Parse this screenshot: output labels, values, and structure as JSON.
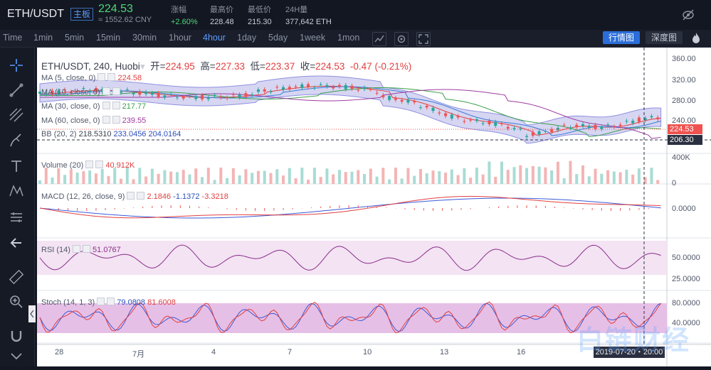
{
  "header": {
    "symbol": "ETH/USDT",
    "tag": "主板",
    "price": "224.53",
    "price_cny": "≈ 1552.62 CNY",
    "stats": [
      {
        "label": "涨幅",
        "value": "+2.60%",
        "green": true
      },
      {
        "label": "最高价",
        "value": "228.48",
        "green": false
      },
      {
        "label": "最低价",
        "value": "215.30",
        "green": false
      },
      {
        "label": "24H量",
        "value": "377,642 ETH",
        "green": false
      }
    ]
  },
  "toolbar": {
    "timeframes": [
      "Time",
      "1min",
      "5min",
      "15min",
      "30min",
      "1hour",
      "4hour",
      "1day",
      "5day",
      "1week",
      "1mon"
    ],
    "active": "4hour",
    "btn_market": "行情图",
    "btn_depth": "深度图"
  },
  "legend": {
    "main": "ETH/USDT, 240, Huobi",
    "open_l": "开=",
    "open": "224.95",
    "high_l": "高=",
    "high": "227.33",
    "low_l": "低=",
    "low": "223.37",
    "close_l": "收=",
    "close": "224.53",
    "change": "-0.47 (-0.21%)",
    "ma5": "MA (5, close, 0)",
    "ma5_v": "224.58",
    "ma10": "MA (10, close, 0)",
    "ma30": "MA (30, close, 0)",
    "ma30_v": "217.77",
    "ma60": "MA (60, close, 0)",
    "ma60_v": "239.55",
    "bb": "BB (20, 2)",
    "bb_v1": "218.5310",
    "bb_v2": "233.0456",
    "bb_v3": "204.0164",
    "vol": "Volume (20)",
    "vol_v": "40.912K",
    "macd": "MACD (12, 26, close, 9)",
    "macd_v1": "2.1846",
    "macd_v2": "-1.1372",
    "macd_v3": "-3.3218",
    "rsi": "RSI (14)",
    "rsi_v": "51.0767",
    "stoch": "Stoch (14, 1, 3)",
    "stoch_v1": "79.0808",
    "stoch_v2": "81.6008"
  },
  "axis": {
    "price_ticks": [
      "360.00",
      "320.00",
      "280.00",
      "240.00"
    ],
    "price_tag": "224.53",
    "price_tag2": "206.30",
    "vol_ticks": [
      "400K",
      "0"
    ],
    "macd_ticks": [
      "0.0000"
    ],
    "rsi_ticks": [
      "50.0000",
      "25.0000"
    ],
    "stoch_ticks": [
      "80.0000",
      "40.0000"
    ],
    "x_labels": [
      "28",
      "7月",
      "4",
      "7",
      "10",
      "13",
      "16"
    ],
    "datetime": "2019-07-20・20:00"
  },
  "watermark": "白链财经",
  "colors": {
    "up": "#26a69a",
    "down": "#ef5350",
    "accent": "#2b6ed9",
    "bb_fill": "#c9c9ee"
  }
}
